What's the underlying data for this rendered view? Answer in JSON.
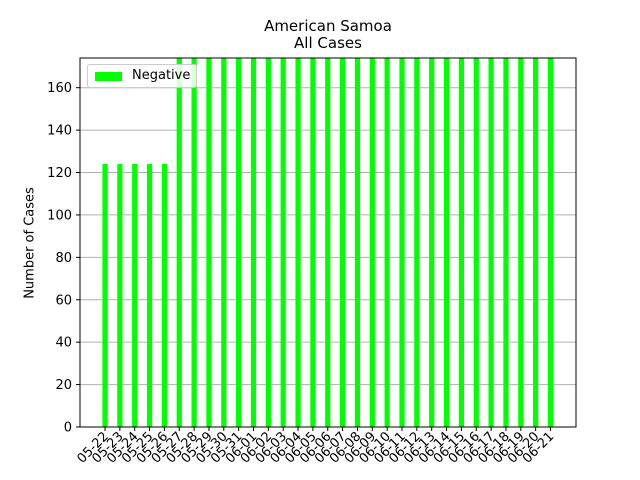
{
  "chart_data": {
    "type": "bar",
    "title": "American Samoa",
    "subtitle": "All Cases",
    "xlabel": "",
    "ylabel": "Number of Cases",
    "ylim": [
      0,
      174
    ],
    "yticks": [
      0,
      20,
      40,
      60,
      80,
      100,
      120,
      140,
      160
    ],
    "grid": "horizontal",
    "legend_position": "top-left",
    "categories": [
      "05-22",
      "05-23",
      "05-24",
      "05-25",
      "05-26",
      "05-27",
      "05-28",
      "05-29",
      "05-30",
      "05-31",
      "06-01",
      "06-02",
      "06-03",
      "06-04",
      "06-05",
      "06-06",
      "06-07",
      "06-08",
      "06-09",
      "06-10",
      "06-11",
      "06-12",
      "06-13",
      "06-14",
      "06-15",
      "06-16",
      "06-17",
      "06-18",
      "06-19",
      "06-20",
      "06-21"
    ],
    "series": [
      {
        "name": "Negative",
        "color": "#00ff00",
        "values": [
          124,
          124,
          124,
          124,
          124,
          174,
          174,
          174,
          174,
          174,
          174,
          174,
          174,
          174,
          174,
          174,
          174,
          174,
          174,
          174,
          174,
          174,
          174,
          174,
          174,
          174,
          174,
          174,
          174,
          174,
          174
        ]
      }
    ]
  }
}
